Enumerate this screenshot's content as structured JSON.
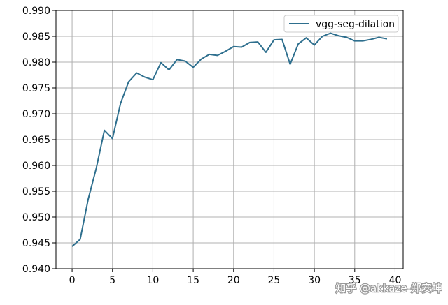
{
  "chart_data": {
    "type": "line",
    "title": "",
    "xlabel": "",
    "ylabel": "",
    "xlim": [
      -2,
      41
    ],
    "ylim": [
      0.94,
      0.99
    ],
    "x_ticks": [
      0,
      5,
      10,
      15,
      20,
      25,
      30,
      35,
      40
    ],
    "y_ticks": [
      0.94,
      0.945,
      0.95,
      0.955,
      0.96,
      0.965,
      0.97,
      0.975,
      0.98,
      0.985,
      0.99
    ],
    "x_tick_labels": [
      "0",
      "5",
      "10",
      "15",
      "20",
      "25",
      "30",
      "35",
      "40"
    ],
    "y_tick_labels": [
      "0.940",
      "0.945",
      "0.950",
      "0.955",
      "0.960",
      "0.965",
      "0.970",
      "0.975",
      "0.980",
      "0.985",
      "0.990"
    ],
    "grid": true,
    "legend_position": "top-right",
    "series": [
      {
        "name": "vgg-seg-dilation",
        "color": "#2e6f8e",
        "x": [
          0,
          1,
          2,
          3,
          4,
          5,
          6,
          7,
          8,
          9,
          10,
          11,
          12,
          13,
          14,
          15,
          16,
          17,
          18,
          19,
          20,
          21,
          22,
          23,
          24,
          25,
          26,
          27,
          28,
          29,
          30,
          31,
          32,
          33,
          34,
          35,
          36,
          37,
          38,
          39
        ],
        "values": [
          0.9443,
          0.9457,
          0.9535,
          0.9595,
          0.9668,
          0.9652,
          0.972,
          0.9762,
          0.9779,
          0.9771,
          0.9766,
          0.9799,
          0.9785,
          0.9805,
          0.9802,
          0.979,
          0.9806,
          0.9815,
          0.9813,
          0.9821,
          0.983,
          0.9829,
          0.9838,
          0.9839,
          0.9819,
          0.9843,
          0.9844,
          0.9796,
          0.9835,
          0.9847,
          0.9833,
          0.985,
          0.9856,
          0.9851,
          0.9848,
          0.9841,
          0.9841,
          0.9844,
          0.9848,
          0.9845
        ]
      }
    ]
  },
  "watermark": {
    "text": "知乎 @akkaze-郑安坤"
  }
}
